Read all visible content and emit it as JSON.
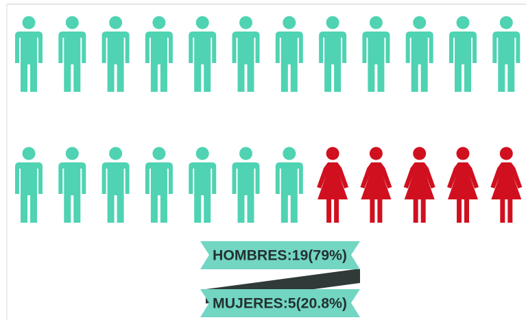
{
  "chart_data": {
    "type": "pictogram",
    "per_row": 12,
    "series": [
      {
        "color": "#4fd3b2",
        "values": [
          19
        ],
        "value_labels": [
          "HOMBRES:19(79%)"
        ]
      },
      {
        "color": "#d0101f",
        "values": [
          5
        ],
        "value_labels": [
          "MUJERES:5(20.8%)"
        ]
      }
    ]
  }
}
